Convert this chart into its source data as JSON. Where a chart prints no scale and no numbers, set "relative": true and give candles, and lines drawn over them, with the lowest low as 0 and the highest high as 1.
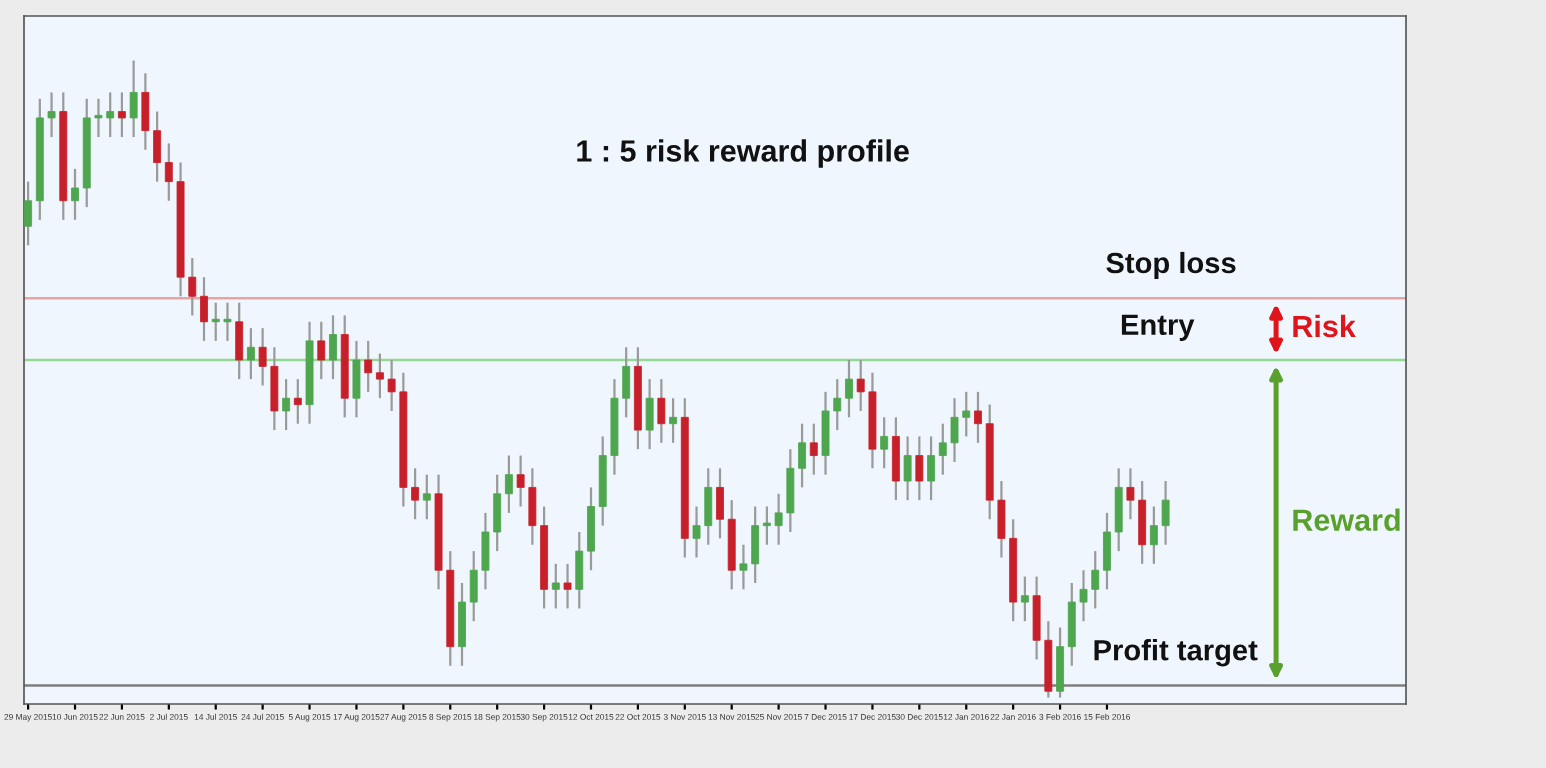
{
  "chart_data": {
    "type": "candlestick",
    "title": "1 : 5 risk reward profile",
    "relative": true,
    "tick_labels": "x",
    "grid": false,
    "categories": [
      "29 May 2015",
      null,
      null,
      null,
      "10 Jun 2015",
      null,
      null,
      null,
      "22 Jun 2015",
      null,
      null,
      null,
      "2 Jul 2015",
      null,
      null,
      null,
      "14 Jul 2015",
      null,
      null,
      null,
      "24 Jul 2015",
      null,
      null,
      null,
      "5 Aug 2015",
      null,
      null,
      null,
      "17 Aug 2015",
      null,
      null,
      null,
      "27 Aug 2015",
      null,
      null,
      null,
      "8 Sep 2015",
      null,
      null,
      null,
      "18 Sep 2015",
      null,
      null,
      null,
      "30 Sep 2015",
      null,
      null,
      null,
      "12 Oct 2015",
      null,
      null,
      null,
      "22 Oct 2015",
      null,
      null,
      null,
      "3 Nov 2015",
      null,
      null,
      null,
      "13 Nov 2015",
      null,
      null,
      null,
      "25 Nov 2015",
      null,
      null,
      null,
      "7 Dec 2015",
      null,
      null,
      null,
      "17 Dec 2015",
      null,
      null,
      null,
      "30 Dec 2015",
      null,
      null,
      null,
      "12 Jan 2016",
      null,
      null,
      null,
      "22 Jan 2016",
      null,
      null,
      null,
      "3 Feb 2016",
      null,
      null,
      null,
      "15 Feb 2016",
      null,
      null,
      null,
      null,
      null
    ],
    "ohlc": [
      [
        0.74,
        0.81,
        0.71,
        0.78
      ],
      [
        0.78,
        0.94,
        0.75,
        0.91
      ],
      [
        0.91,
        0.95,
        0.88,
        0.92
      ],
      [
        0.92,
        0.95,
        0.75,
        0.78
      ],
      [
        0.78,
        0.83,
        0.75,
        0.8
      ],
      [
        0.8,
        0.94,
        0.77,
        0.91
      ],
      [
        0.91,
        0.94,
        0.88,
        0.91
      ],
      [
        0.91,
        0.95,
        0.88,
        0.92
      ],
      [
        0.92,
        0.95,
        0.88,
        0.91
      ],
      [
        0.91,
        1.0,
        0.88,
        0.95
      ],
      [
        0.95,
        0.98,
        0.86,
        0.89
      ],
      [
        0.89,
        0.92,
        0.81,
        0.84
      ],
      [
        0.84,
        0.87,
        0.78,
        0.81
      ],
      [
        0.81,
        0.84,
        0.63,
        0.66
      ],
      [
        0.66,
        0.69,
        0.6,
        0.63
      ],
      [
        0.63,
        0.66,
        0.56,
        0.59
      ],
      [
        0.59,
        0.62,
        0.56,
        0.59
      ],
      [
        0.59,
        0.62,
        0.56,
        0.59
      ],
      [
        0.59,
        0.62,
        0.5,
        0.53
      ],
      [
        0.53,
        0.58,
        0.5,
        0.55
      ],
      [
        0.55,
        0.58,
        0.49,
        0.52
      ],
      [
        0.52,
        0.55,
        0.42,
        0.45
      ],
      [
        0.45,
        0.5,
        0.42,
        0.47
      ],
      [
        0.47,
        0.5,
        0.43,
        0.46
      ],
      [
        0.46,
        0.59,
        0.43,
        0.56
      ],
      [
        0.56,
        0.59,
        0.5,
        0.53
      ],
      [
        0.53,
        0.6,
        0.5,
        0.57
      ],
      [
        0.57,
        0.6,
        0.44,
        0.47
      ],
      [
        0.47,
        0.56,
        0.44,
        0.53
      ],
      [
        0.53,
        0.56,
        0.48,
        0.51
      ],
      [
        0.51,
        0.54,
        0.47,
        0.5
      ],
      [
        0.5,
        0.53,
        0.45,
        0.48
      ],
      [
        0.48,
        0.51,
        0.3,
        0.33
      ],
      [
        0.33,
        0.36,
        0.28,
        0.31
      ],
      [
        0.31,
        0.35,
        0.28,
        0.32
      ],
      [
        0.32,
        0.35,
        0.17,
        0.2
      ],
      [
        0.2,
        0.23,
        0.05,
        0.08
      ],
      [
        0.08,
        0.18,
        0.05,
        0.15
      ],
      [
        0.15,
        0.23,
        0.12,
        0.2
      ],
      [
        0.2,
        0.29,
        0.17,
        0.26
      ],
      [
        0.26,
        0.35,
        0.23,
        0.32
      ],
      [
        0.32,
        0.38,
        0.29,
        0.35
      ],
      [
        0.35,
        0.38,
        0.3,
        0.33
      ],
      [
        0.33,
        0.36,
        0.24,
        0.27
      ],
      [
        0.27,
        0.3,
        0.14,
        0.17
      ],
      [
        0.17,
        0.21,
        0.14,
        0.18
      ],
      [
        0.18,
        0.21,
        0.14,
        0.17
      ],
      [
        0.17,
        0.26,
        0.14,
        0.23
      ],
      [
        0.23,
        0.33,
        0.2,
        0.3
      ],
      [
        0.3,
        0.41,
        0.27,
        0.38
      ],
      [
        0.38,
        0.5,
        0.35,
        0.47
      ],
      [
        0.47,
        0.55,
        0.44,
        0.52
      ],
      [
        0.52,
        0.55,
        0.39,
        0.42
      ],
      [
        0.42,
        0.5,
        0.39,
        0.47
      ],
      [
        0.47,
        0.5,
        0.4,
        0.43
      ],
      [
        0.43,
        0.47,
        0.4,
        0.44
      ],
      [
        0.44,
        0.47,
        0.22,
        0.25
      ],
      [
        0.25,
        0.3,
        0.22,
        0.27
      ],
      [
        0.27,
        0.36,
        0.24,
        0.33
      ],
      [
        0.33,
        0.36,
        0.25,
        0.28
      ],
      [
        0.28,
        0.31,
        0.17,
        0.2
      ],
      [
        0.2,
        0.24,
        0.17,
        0.21
      ],
      [
        0.21,
        0.3,
        0.18,
        0.27
      ],
      [
        0.27,
        0.3,
        0.24,
        0.27
      ],
      [
        0.27,
        0.32,
        0.24,
        0.29
      ],
      [
        0.29,
        0.39,
        0.26,
        0.36
      ],
      [
        0.36,
        0.43,
        0.33,
        0.4
      ],
      [
        0.4,
        0.43,
        0.35,
        0.38
      ],
      [
        0.38,
        0.48,
        0.35,
        0.45
      ],
      [
        0.45,
        0.5,
        0.42,
        0.47
      ],
      [
        0.47,
        0.53,
        0.44,
        0.5
      ],
      [
        0.5,
        0.53,
        0.45,
        0.48
      ],
      [
        0.48,
        0.51,
        0.36,
        0.39
      ],
      [
        0.39,
        0.44,
        0.36,
        0.41
      ],
      [
        0.41,
        0.44,
        0.31,
        0.34
      ],
      [
        0.34,
        0.41,
        0.31,
        0.38
      ],
      [
        0.38,
        0.41,
        0.31,
        0.34
      ],
      [
        0.34,
        0.41,
        0.31,
        0.38
      ],
      [
        0.38,
        0.43,
        0.35,
        0.4
      ],
      [
        0.4,
        0.47,
        0.37,
        0.44
      ],
      [
        0.44,
        0.48,
        0.41,
        0.45
      ],
      [
        0.45,
        0.48,
        0.4,
        0.43
      ],
      [
        0.43,
        0.46,
        0.28,
        0.31
      ],
      [
        0.31,
        0.34,
        0.22,
        0.25
      ],
      [
        0.25,
        0.28,
        0.12,
        0.15
      ],
      [
        0.15,
        0.19,
        0.12,
        0.16
      ],
      [
        0.16,
        0.19,
        0.06,
        0.09
      ],
      [
        0.09,
        0.12,
        0.0,
        0.01
      ],
      [
        0.01,
        0.11,
        0.0,
        0.08
      ],
      [
        0.08,
        0.18,
        0.05,
        0.15
      ],
      [
        0.15,
        0.2,
        0.12,
        0.17
      ],
      [
        0.17,
        0.23,
        0.14,
        0.2
      ],
      [
        0.2,
        0.29,
        0.17,
        0.26
      ],
      [
        0.26,
        0.36,
        0.23,
        0.33
      ],
      [
        0.33,
        0.36,
        0.28,
        0.31
      ],
      [
        0.31,
        0.34,
        0.21,
        0.24
      ],
      [
        0.24,
        0.3,
        0.21,
        0.27
      ],
      [
        0.27,
        0.34,
        0.24,
        0.31
      ]
    ],
    "ref_lines": [
      {
        "axis": "y",
        "value": 0.627,
        "label": "Stop loss",
        "color": "#e8a3a3"
      },
      {
        "axis": "y",
        "value": 0.53,
        "label": "Entry",
        "color": "#93d993"
      },
      {
        "axis": "y",
        "value": 0.019,
        "label": "Profit target",
        "color": "#7f7f7f"
      }
    ],
    "annotations": [
      "Risk",
      "Reward"
    ]
  }
}
